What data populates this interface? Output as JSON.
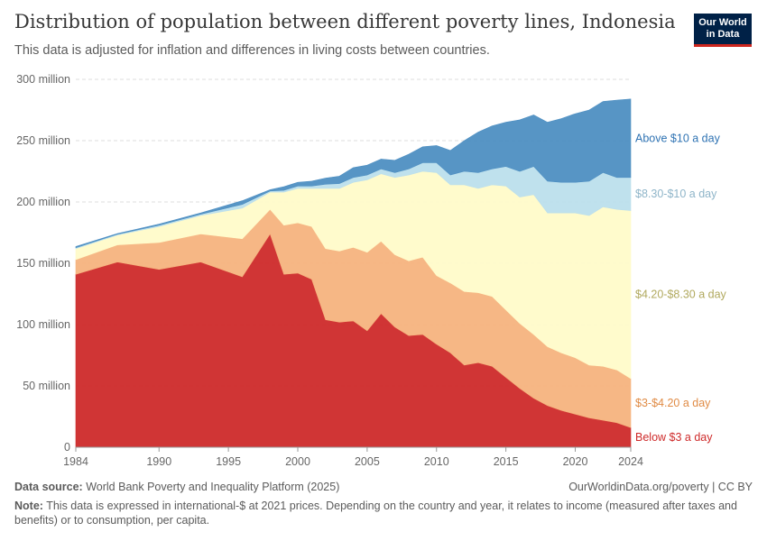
{
  "header": {
    "title": "Distribution of population between different poverty lines, Indonesia",
    "subtitle": "This data is adjusted for inflation and differences in living costs between countries.",
    "logo_line1": "Our World",
    "logo_line2": "in Data"
  },
  "footer": {
    "source_label": "Data source:",
    "source_text": "World Bank Poverty and Inequality Platform (2025)",
    "link_text": "OurWorldinData.org/poverty | CC BY",
    "note_label": "Note:",
    "note_text": "This data is expressed in international-$ at 2021 prices. Depending on the country and year, it relates to income (measured after taxes and benefits) or to consumption, per capita."
  },
  "chart_data": {
    "type": "area",
    "stacked": true,
    "x": [
      1984,
      1987,
      1990,
      1993,
      1996,
      1998,
      1999,
      2000,
      2001,
      2002,
      2003,
      2004,
      2005,
      2006,
      2007,
      2008,
      2009,
      2010,
      2011,
      2012,
      2013,
      2014,
      2015,
      2016,
      2017,
      2018,
      2019,
      2020,
      2021,
      2022,
      2023,
      2024
    ],
    "xlim": [
      1984,
      2024
    ],
    "xticks": [
      {
        "value": 1984,
        "label": "1984"
      },
      {
        "value": 1990,
        "label": "1990"
      },
      {
        "value": 1995,
        "label": "1995"
      },
      {
        "value": 2000,
        "label": "2000"
      },
      {
        "value": 2005,
        "label": "2005"
      },
      {
        "value": 2010,
        "label": "2010"
      },
      {
        "value": 2015,
        "label": "2015"
      },
      {
        "value": 2020,
        "label": "2020"
      },
      {
        "value": 2024,
        "label": "2024"
      }
    ],
    "ylim": [
      0,
      300
    ],
    "yticks": [
      {
        "value": 0,
        "label": "0"
      },
      {
        "value": 50,
        "label": "50 million"
      },
      {
        "value": 100,
        "label": "100 million"
      },
      {
        "value": 150,
        "label": "150 million"
      },
      {
        "value": 200,
        "label": "200 million"
      },
      {
        "value": 250,
        "label": "250 million"
      },
      {
        "value": 300,
        "label": "300 million"
      }
    ],
    "grid": true,
    "legend": "right, labels at series ends",
    "series": [
      {
        "name": "Below $3 a day",
        "color": "#ce2a2a",
        "values": [
          141,
          151,
          145,
          151,
          139,
          174,
          141,
          142,
          137,
          104,
          102,
          103,
          95,
          109,
          98,
          91,
          92,
          84,
          77,
          67,
          69,
          66,
          57,
          48,
          40,
          34,
          30,
          27,
          24,
          22,
          20,
          16
        ]
      },
      {
        "name": "$3-$4.20 a day",
        "color": "#f6b37e",
        "values": [
          12,
          14,
          22,
          23,
          31,
          20,
          40,
          41,
          43,
          58,
          58,
          60,
          64,
          59,
          59,
          61,
          63,
          56,
          57,
          60,
          57,
          57,
          55,
          53,
          52,
          48,
          47,
          46,
          43,
          44,
          43,
          40
        ]
      },
      {
        "name": "$4.20-$8.30 a day",
        "color": "#fffbc9",
        "values": [
          9,
          8,
          13,
          15,
          25,
          14,
          27,
          28,
          31,
          49,
          51,
          53,
          59,
          55,
          63,
          70,
          70,
          84,
          80,
          87,
          85,
          91,
          101,
          103,
          114,
          109,
          114,
          118,
          122,
          130,
          131,
          137
        ]
      },
      {
        "name": "$8.30-$10 a day",
        "color": "#bcdfec",
        "values": [
          0.7,
          0.7,
          1,
          1,
          3,
          1,
          1.5,
          2,
          2,
          3.5,
          4,
          4,
          4,
          4,
          4,
          5,
          7,
          8,
          8,
          11,
          13,
          13,
          16,
          21,
          23,
          26,
          25,
          25,
          28,
          28,
          26,
          27
        ]
      },
      {
        "name": "Above $10 a day",
        "color": "#4e8fc2",
        "values": [
          1,
          0.5,
          1,
          1,
          3,
          1,
          3,
          3,
          4,
          5,
          6,
          8,
          8,
          8,
          10,
          12,
          13,
          14,
          20,
          25,
          33,
          35,
          36,
          42,
          42,
          48,
          52,
          56,
          58,
          58,
          63,
          64
        ]
      }
    ]
  }
}
